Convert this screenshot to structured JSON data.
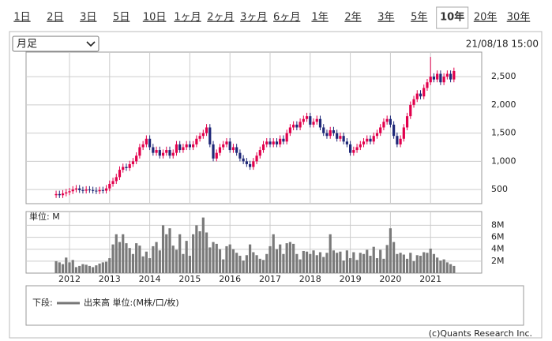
{
  "tabs": [
    "1日",
    "2日",
    "3日",
    "5日",
    "10日",
    "1ヶ月",
    "2ヶ月",
    "3ヶ月",
    "6ヶ月",
    "1年",
    "2年",
    "3年",
    "5年",
    "10年",
    "20年",
    "30年"
  ],
  "selected_tab": "10年",
  "period_select": "月足",
  "timestamp": "21/08/18 15:00",
  "chart_data": [
    {
      "type": "candlestick",
      "up_color": "#e2004c",
      "down_color": "#1f2878",
      "grid": true,
      "categories": [
        null,
        null,
        null,
        null,
        null,
        null,
        null,
        null,
        null,
        null,
        null,
        null,
        null,
        null,
        null,
        null,
        null,
        null,
        null,
        null,
        null,
        null,
        null,
        null,
        null,
        null,
        null,
        null,
        null,
        null,
        null,
        null,
        null,
        null,
        null,
        null,
        null,
        null,
        null,
        null,
        null,
        null,
        null,
        null,
        null,
        null,
        null,
        null,
        null,
        null,
        null,
        null,
        null,
        null,
        null,
        null,
        null,
        null,
        null,
        null,
        null,
        null,
        null,
        null,
        null,
        null,
        null,
        null,
        null,
        null,
        null,
        null,
        null,
        null,
        null,
        null,
        null,
        null,
        null,
        null,
        null,
        null,
        null,
        null,
        null,
        null,
        null,
        null,
        null,
        null,
        null,
        null,
        null,
        null,
        null,
        null,
        null,
        null,
        null,
        null,
        null,
        null,
        null,
        null,
        null,
        null,
        null,
        null,
        null,
        null,
        null,
        null,
        null,
        null,
        null,
        null,
        null,
        null,
        null,
        null
      ],
      "open": [
        400,
        420,
        400,
        430,
        450,
        470,
        500,
        520,
        490,
        480,
        500,
        490,
        480,
        470,
        490,
        480,
        520,
        600,
        650,
        720,
        850,
        900,
        880,
        950,
        1000,
        1100,
        1250,
        1300,
        1400,
        1250,
        1150,
        1200,
        1100,
        1150,
        1200,
        1100,
        1150,
        1300,
        1200,
        1250,
        1300,
        1250,
        1300,
        1400,
        1450,
        1500,
        1600,
        1300,
        1050,
        1150,
        1250,
        1300,
        1350,
        1200,
        1250,
        1150,
        1050,
        1000,
        950,
        900,
        1000,
        1100,
        1200,
        1300,
        1350,
        1300,
        1350,
        1300,
        1400,
        1350,
        1500,
        1600,
        1650,
        1600,
        1700,
        1750,
        1800,
        1650,
        1700,
        1750,
        1600,
        1500,
        1450,
        1550,
        1500,
        1400,
        1450,
        1350,
        1300,
        1150,
        1200,
        1250,
        1300,
        1350,
        1400,
        1350,
        1450,
        1500,
        1600,
        1700,
        1750,
        1650,
        1450,
        1300,
        1400,
        1600,
        1800,
        2000,
        2100,
        2200,
        2150,
        2300,
        2400,
        2500,
        2450,
        2550,
        2400,
        2500,
        2550,
        2450
      ],
      "high": [
        480,
        480,
        490,
        510,
        530,
        560,
        580,
        580,
        550,
        560,
        560,
        550,
        540,
        550,
        550,
        580,
        660,
        710,
        780,
        910,
        960,
        960,
        1010,
        1060,
        1160,
        1310,
        1360,
        1460,
        1460,
        1310,
        1260,
        1260,
        1210,
        1260,
        1260,
        1210,
        1360,
        1360,
        1310,
        1360,
        1360,
        1360,
        1460,
        1510,
        1560,
        1660,
        1660,
        1360,
        1210,
        1310,
        1360,
        1410,
        1410,
        1310,
        1310,
        1210,
        1110,
        1060,
        1010,
        1060,
        1160,
        1260,
        1360,
        1410,
        1410,
        1410,
        1410,
        1460,
        1460,
        1560,
        1660,
        1710,
        1710,
        1760,
        1810,
        1860,
        1860,
        1760,
        1810,
        1810,
        1660,
        1560,
        1610,
        1610,
        1560,
        1510,
        1510,
        1410,
        1360,
        1260,
        1310,
        1360,
        1410,
        1460,
        1460,
        1510,
        1560,
        1660,
        1760,
        1810,
        1810,
        1710,
        1510,
        1460,
        1660,
        1860,
        2060,
        2160,
        2260,
        2260,
        2360,
        2460,
        2850,
        2560,
        2610,
        2610,
        2560,
        2610,
        2610,
        2660
      ],
      "low": [
        350,
        350,
        350,
        380,
        400,
        420,
        450,
        440,
        430,
        430,
        440,
        430,
        420,
        420,
        430,
        430,
        470,
        550,
        600,
        670,
        800,
        830,
        830,
        900,
        950,
        1050,
        1200,
        1250,
        1200,
        1100,
        1100,
        1050,
        1050,
        1100,
        1050,
        1050,
        1100,
        1150,
        1150,
        1200,
        1200,
        1200,
        1250,
        1350,
        1400,
        1450,
        1250,
        1000,
        1000,
        1100,
        1200,
        1250,
        1150,
        1150,
        1100,
        1000,
        950,
        900,
        850,
        850,
        950,
        1050,
        1150,
        1250,
        1250,
        1250,
        1250,
        1250,
        1300,
        1300,
        1450,
        1550,
        1550,
        1550,
        1650,
        1700,
        1600,
        1600,
        1650,
        1550,
        1450,
        1400,
        1400,
        1450,
        1350,
        1350,
        1300,
        1250,
        1100,
        1100,
        1150,
        1200,
        1250,
        1300,
        1300,
        1300,
        1400,
        1450,
        1550,
        1650,
        1600,
        1400,
        1250,
        1250,
        1350,
        1550,
        1750,
        1950,
        2050,
        2100,
        2100,
        2250,
        2350,
        2400,
        2400,
        2350,
        2350,
        2450,
        2400,
        2400
      ],
      "close": [
        420,
        400,
        430,
        450,
        470,
        500,
        520,
        490,
        480,
        500,
        490,
        480,
        470,
        490,
        480,
        520,
        600,
        650,
        720,
        850,
        900,
        880,
        950,
        1000,
        1100,
        1250,
        1300,
        1400,
        1250,
        1150,
        1200,
        1100,
        1150,
        1200,
        1100,
        1150,
        1300,
        1200,
        1250,
        1300,
        1250,
        1300,
        1400,
        1450,
        1500,
        1600,
        1300,
        1050,
        1150,
        1250,
        1300,
        1350,
        1200,
        1250,
        1150,
        1050,
        1000,
        950,
        900,
        1000,
        1100,
        1200,
        1300,
        1350,
        1300,
        1350,
        1300,
        1400,
        1350,
        1500,
        1600,
        1650,
        1600,
        1700,
        1750,
        1800,
        1650,
        1700,
        1750,
        1600,
        1500,
        1450,
        1550,
        1500,
        1400,
        1450,
        1350,
        1300,
        1150,
        1200,
        1250,
        1300,
        1350,
        1400,
        1350,
        1450,
        1500,
        1600,
        1700,
        1750,
        1650,
        1450,
        1300,
        1400,
        1600,
        1800,
        2000,
        2100,
        2200,
        2150,
        2300,
        2400,
        2500,
        2450,
        2550,
        2400,
        2500,
        2550,
        2450,
        2600
      ],
      "ylim": [
        250,
        2935
      ],
      "yticks": [
        500,
        {
          "value": 1000,
          "label": "1,000"
        },
        {
          "value": 1500,
          "label": "1,500"
        },
        {
          "value": 2000,
          "label": "2,000"
        },
        {
          "value": 2500,
          "label": "2,500"
        }
      ]
    },
    {
      "type": "bar",
      "unit_label": "単位: M",
      "color": "#7a7a7a",
      "grid": true,
      "categories": [
        null,
        null,
        null,
        null,
        null,
        null,
        null,
        null,
        null,
        null,
        null,
        null,
        null,
        null,
        null,
        null,
        null,
        null,
        null,
        null,
        null,
        null,
        null,
        null,
        null,
        null,
        null,
        null,
        null,
        null,
        null,
        null,
        null,
        null,
        null,
        null,
        null,
        null,
        null,
        null,
        null,
        null,
        null,
        null,
        null,
        null,
        null,
        null,
        null,
        null,
        null,
        null,
        null,
        null,
        null,
        null,
        null,
        null,
        null,
        null,
        null,
        null,
        null,
        null,
        null,
        null,
        null,
        null,
        null,
        null,
        null,
        null,
        null,
        null,
        null,
        null,
        null,
        null,
        null,
        null,
        null,
        null,
        null,
        null,
        null,
        null,
        null,
        null,
        null,
        null,
        null,
        null,
        null,
        null,
        null,
        null,
        null,
        null,
        null,
        null,
        null,
        null,
        null,
        null,
        null,
        null,
        null,
        null,
        null,
        null,
        null,
        null,
        null,
        null,
        null,
        null,
        null,
        null,
        null,
        null
      ],
      "values": [
        2.0,
        1.8,
        1.5,
        2.6,
        1.8,
        2.2,
        1.0,
        1.2,
        1.5,
        1.4,
        1.2,
        1.0,
        1.3,
        1.6,
        1.8,
        1.9,
        2.5,
        4.8,
        6.5,
        5.2,
        6.5,
        5.0,
        4.2,
        3.2,
        5.0,
        4.6,
        2.8,
        3.6,
        2.5,
        4.5,
        5.2,
        3.8,
        8.0,
        6.5,
        7.5,
        4.6,
        3.9,
        6.5,
        3.2,
        5.4,
        2.9,
        6.5,
        8.0,
        7.0,
        9.3,
        6.8,
        4.3,
        5.2,
        4.9,
        4.0,
        2.3,
        4.5,
        4.8,
        4.0,
        3.4,
        2.9,
        2.1,
        3.0,
        4.8,
        3.5,
        3.0,
        2.4,
        2.2,
        3.2,
        4.5,
        6.5,
        4.0,
        4.8,
        3.2,
        5.0,
        5.2,
        4.9,
        3.2,
        2.3,
        3.7,
        3.6,
        3.2,
        3.8,
        3.0,
        3.5,
        2.7,
        3.4,
        6.5,
        3.8,
        3.4,
        3.6,
        2.1,
        3.8,
        2.5,
        3.5,
        2.2,
        3.4,
        3.2,
        3.9,
        2.9,
        4.4,
        2.5,
        3.9,
        2.4,
        4.7,
        7.5,
        5.2,
        3.2,
        3.4,
        3.1,
        2.4,
        3.4,
        2.0,
        3.0,
        2.9,
        3.5,
        3.4,
        4.1,
        3.2,
        2.6,
        2.1,
        2.3,
        1.8,
        1.5,
        1.2
      ],
      "ylim": [
        0,
        10.3
      ],
      "yticks": [
        {
          "value": 2,
          "label": "2M"
        },
        {
          "value": 4,
          "label": "4M"
        },
        {
          "value": 6,
          "label": "6M"
        },
        {
          "value": 8,
          "label": "8M"
        }
      ],
      "xticks": [
        {
          "value": 4,
          "label": "2012"
        },
        {
          "value": 16,
          "label": "2013"
        },
        {
          "value": 28,
          "label": "2014"
        },
        {
          "value": 40,
          "label": "2015"
        },
        {
          "value": 52,
          "label": "2016"
        },
        {
          "value": 64,
          "label": "2017"
        },
        {
          "value": 76,
          "label": "2018"
        },
        {
          "value": 88,
          "label": "2019"
        },
        {
          "value": 100,
          "label": "2020"
        },
        {
          "value": 112,
          "label": "2021"
        }
      ]
    }
  ],
  "legend": {
    "label": "下段:",
    "series": "出来高 単位:(M株/口/枚)"
  },
  "credit": "(c)Quants Research Inc."
}
